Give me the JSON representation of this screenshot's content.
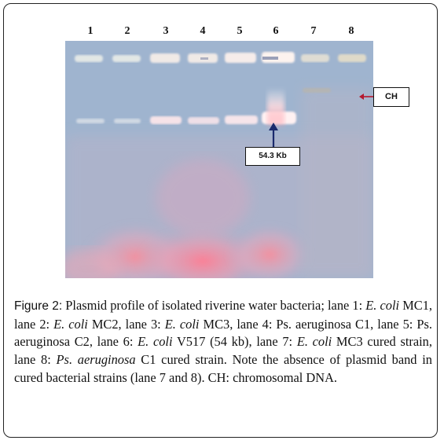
{
  "figure": {
    "lane_numbers": [
      "1",
      "2",
      "3",
      "4",
      "5",
      "6",
      "7",
      "8"
    ],
    "annotations": {
      "ch_label": "CH",
      "kb_label": "54.3 Kb"
    },
    "caption": {
      "label": "Figure 2:",
      "t1": " Plasmid profile of isolated riverine water bacteria; lane 1: ",
      "i1": "E. coli",
      "t2": " MC1, lane 2: ",
      "i2": "E. coli",
      "t3": " MC2, lane 3: ",
      "i3": "E. coli",
      "t4": " MC3, lane 4: Ps. aeruginosa C1, lane 5: Ps. aeruginosa C2, lane 6: ",
      "i4": "E. coli",
      "t5": " V517 (54 kb), lane 7: ",
      "i5": "E. coli",
      "t6": " MC3 cured strain, lane 8: ",
      "i6": "Ps. aeruginosa",
      "t7": " C1 cured strain. Note the absence of plasmid band in cured bacterial strains (lane 7 and 8). CH: chromosomal DNA."
    },
    "colors": {
      "gel_blue": "#9db2cd",
      "band": "#f2e8ee",
      "smear": "#ff7a8a",
      "arrow": "#1a2a6c"
    }
  }
}
